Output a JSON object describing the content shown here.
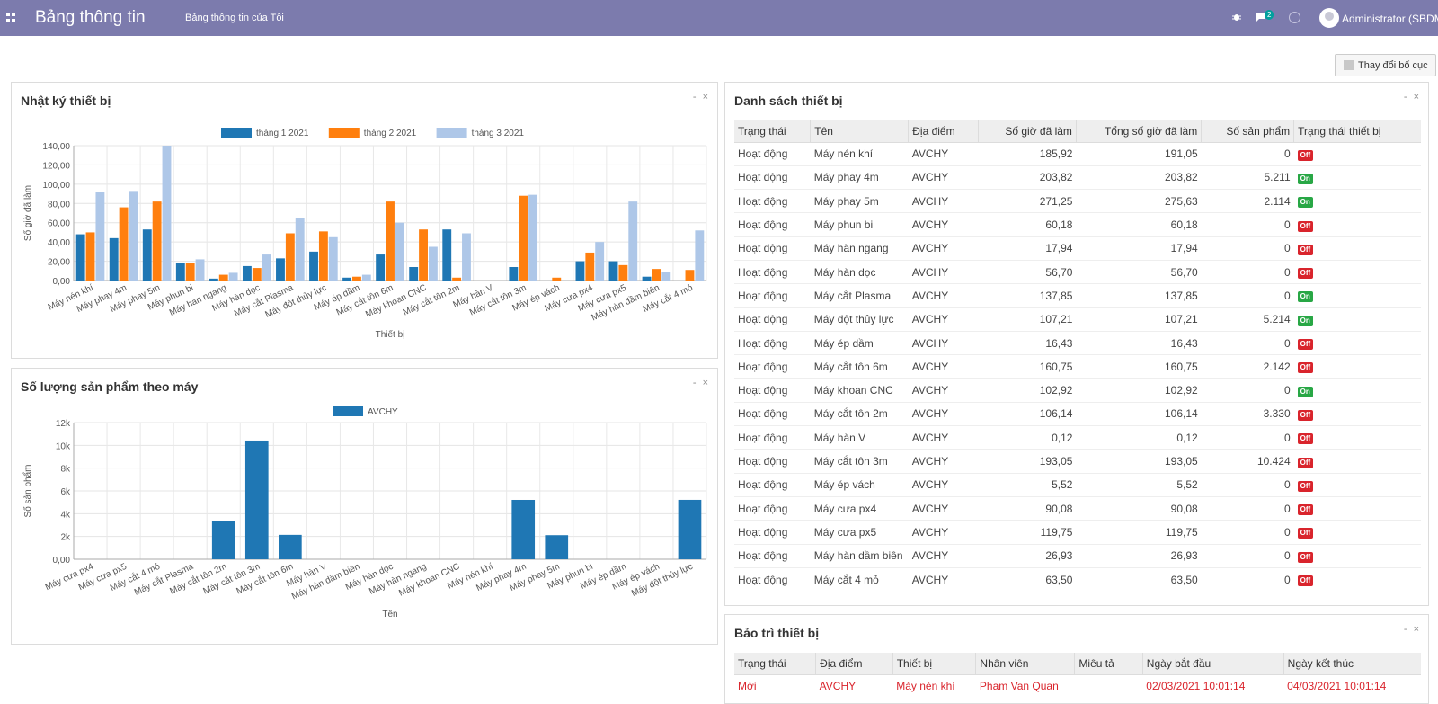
{
  "topbar": {
    "app_title": "Bảng thông tin",
    "menu_link": "Bảng thông tin của Tôi",
    "messages_count": "2",
    "user_name": "Administrator (SBDM)"
  },
  "layout_button": "Thay đổi bố cục",
  "colors": {
    "topbar": "#7c7bad",
    "series_jan": "#1f77b4",
    "series_feb": "#ff7f0e",
    "series_mar": "#aec7e8",
    "on": "#28a745",
    "off": "#d9242c"
  },
  "icons": {
    "apps": "apps-grid-icon",
    "bug": "bug-icon",
    "chat": "chat-icon",
    "clock": "clock-icon",
    "avatar": "user-avatar"
  },
  "panels": {
    "log": {
      "title": "Nhật ký thiết bị",
      "controls": "- ×"
    },
    "products": {
      "title": "Số lượng sản phẩm theo máy",
      "controls": "- ×"
    },
    "equipment": {
      "title": "Danh sách thiết bị",
      "controls": "- ×"
    },
    "maintenance": {
      "title": "Bảo trì thiết bị",
      "controls": "- ×"
    }
  },
  "chart_data": [
    {
      "type": "bar",
      "title": "",
      "xlabel": "Thiết bị",
      "ylabel": "Số giờ đã làm",
      "ylim": [
        0,
        140
      ],
      "yticks": [
        "0,00",
        "20,00",
        "40,00",
        "60,00",
        "80,00",
        "100,00",
        "120,00",
        "140,00"
      ],
      "legend": "top",
      "grid": true,
      "categories": [
        "Máy nén khí",
        "Máy phay 4m",
        "Máy phay 5m",
        "Máy phun bi",
        "Máy hàn ngang",
        "Máy hàn dọc",
        "Máy cắt Plasma",
        "Máy đột thủy lực",
        "Máy ép dầm",
        "Máy cắt tôn 6m",
        "Máy khoan CNC",
        "Máy cắt tôn 2m",
        "Máy hàn V",
        "Máy cắt tôn 3m",
        "Máy ép vách",
        "Máy cưa px4",
        "Máy cưa px5",
        "Máy hàn dầm biên",
        "Máy cắt 4 mỏ"
      ],
      "series": [
        {
          "name": "tháng 1 2021",
          "color": "#1f77b4",
          "values": [
            48,
            44,
            53,
            18,
            2,
            15,
            23,
            30,
            3,
            27,
            14,
            53,
            0,
            14,
            0,
            20,
            20,
            4,
            0
          ]
        },
        {
          "name": "tháng 2 2021",
          "color": "#ff7f0e",
          "values": [
            50,
            76,
            82,
            18,
            6,
            13,
            49,
            51,
            4,
            82,
            53,
            3,
            0,
            88,
            3,
            29,
            16,
            12,
            11
          ]
        },
        {
          "name": "tháng 3 2021",
          "color": "#aec7e8",
          "values": [
            92,
            93,
            140,
            22,
            8,
            27,
            65,
            45,
            6,
            60,
            35,
            49,
            0,
            89,
            0,
            40,
            82,
            9,
            52
          ]
        }
      ]
    },
    {
      "type": "bar",
      "title": "",
      "xlabel": "Tên",
      "ylabel": "Số sản phẩm",
      "ylim": [
        0,
        12000
      ],
      "yticks": [
        "0,00",
        "2k",
        "4k",
        "6k",
        "8k",
        "10k",
        "12k"
      ],
      "legend": "top",
      "grid": true,
      "categories": [
        "Máy cưa px4",
        "Máy cưa px5",
        "Máy cắt 4 mỏ",
        "Máy cắt Plasma",
        "Máy cắt tôn 2m",
        "Máy cắt tôn 3m",
        "Máy cắt tôn 6m",
        "Máy hàn V",
        "Máy hàn dầm biên",
        "Máy hàn dọc",
        "Máy hàn ngang",
        "Máy khoan CNC",
        "Máy nén khí",
        "Máy phay 4m",
        "Máy phay 5m",
        "Máy phun bi",
        "Máy ép dầm",
        "Máy ép vách",
        "Máy đột thủy lực"
      ],
      "series": [
        {
          "name": "AVCHY",
          "color": "#1f77b4",
          "values": [
            0,
            0,
            0,
            0,
            3330,
            10424,
            2142,
            0,
            0,
            0,
            0,
            0,
            0,
            5211,
            2114,
            0,
            0,
            0,
            5214
          ]
        }
      ]
    }
  ],
  "equipment_table": {
    "columns": [
      "Trạng thái",
      "Tên",
      "Địa điểm",
      "Số giờ đã làm",
      "Tổng số giờ đã làm",
      "Số sản phẩm",
      "Trạng thái thiết bị"
    ],
    "rows": [
      {
        "status": "Hoạt động",
        "name": "Máy nén khí",
        "location": "AVCHY",
        "hours": "185,92",
        "total": "191,05",
        "products": "0",
        "state": "Off"
      },
      {
        "status": "Hoạt động",
        "name": "Máy phay 4m",
        "location": "AVCHY",
        "hours": "203,82",
        "total": "203,82",
        "products": "5.211",
        "state": "On"
      },
      {
        "status": "Hoạt động",
        "name": "Máy phay 5m",
        "location": "AVCHY",
        "hours": "271,25",
        "total": "275,63",
        "products": "2.114",
        "state": "On"
      },
      {
        "status": "Hoạt động",
        "name": "Máy phun bi",
        "location": "AVCHY",
        "hours": "60,18",
        "total": "60,18",
        "products": "0",
        "state": "Off"
      },
      {
        "status": "Hoạt động",
        "name": "Máy hàn ngang",
        "location": "AVCHY",
        "hours": "17,94",
        "total": "17,94",
        "products": "0",
        "state": "Off"
      },
      {
        "status": "Hoạt động",
        "name": "Máy hàn dọc",
        "location": "AVCHY",
        "hours": "56,70",
        "total": "56,70",
        "products": "0",
        "state": "Off"
      },
      {
        "status": "Hoạt động",
        "name": "Máy cắt Plasma",
        "location": "AVCHY",
        "hours": "137,85",
        "total": "137,85",
        "products": "0",
        "state": "On"
      },
      {
        "status": "Hoạt động",
        "name": "Máy đột thủy lực",
        "location": "AVCHY",
        "hours": "107,21",
        "total": "107,21",
        "products": "5.214",
        "state": "On"
      },
      {
        "status": "Hoạt động",
        "name": "Máy ép dầm",
        "location": "AVCHY",
        "hours": "16,43",
        "total": "16,43",
        "products": "0",
        "state": "Off"
      },
      {
        "status": "Hoạt động",
        "name": "Máy cắt tôn 6m",
        "location": "AVCHY",
        "hours": "160,75",
        "total": "160,75",
        "products": "2.142",
        "state": "Off"
      },
      {
        "status": "Hoạt động",
        "name": "Máy khoan CNC",
        "location": "AVCHY",
        "hours": "102,92",
        "total": "102,92",
        "products": "0",
        "state": "On"
      },
      {
        "status": "Hoạt động",
        "name": "Máy cắt tôn 2m",
        "location": "AVCHY",
        "hours": "106,14",
        "total": "106,14",
        "products": "3.330",
        "state": "Off"
      },
      {
        "status": "Hoạt động",
        "name": "Máy hàn V",
        "location": "AVCHY",
        "hours": "0,12",
        "total": "0,12",
        "products": "0",
        "state": "Off"
      },
      {
        "status": "Hoạt động",
        "name": "Máy cắt tôn 3m",
        "location": "AVCHY",
        "hours": "193,05",
        "total": "193,05",
        "products": "10.424",
        "state": "Off"
      },
      {
        "status": "Hoạt động",
        "name": "Máy ép vách",
        "location": "AVCHY",
        "hours": "5,52",
        "total": "5,52",
        "products": "0",
        "state": "Off"
      },
      {
        "status": "Hoạt động",
        "name": "Máy cưa px4",
        "location": "AVCHY",
        "hours": "90,08",
        "total": "90,08",
        "products": "0",
        "state": "Off"
      },
      {
        "status": "Hoạt động",
        "name": "Máy cưa px5",
        "location": "AVCHY",
        "hours": "119,75",
        "total": "119,75",
        "products": "0",
        "state": "Off"
      },
      {
        "status": "Hoạt động",
        "name": "Máy hàn dầm biên",
        "location": "AVCHY",
        "hours": "26,93",
        "total": "26,93",
        "products": "0",
        "state": "Off"
      },
      {
        "status": "Hoạt động",
        "name": "Máy cắt 4 mỏ",
        "location": "AVCHY",
        "hours": "63,50",
        "total": "63,50",
        "products": "0",
        "state": "Off"
      }
    ]
  },
  "maintenance_table": {
    "columns": [
      "Trạng thái",
      "Địa điểm",
      "Thiết bị",
      "Nhân viên",
      "Miêu tả",
      "Ngày bắt đầu",
      "Ngày kết thúc"
    ],
    "rows": [
      {
        "status": "Mới",
        "location": "AVCHY",
        "equipment": "Máy nén khí",
        "employee": "Pham Van Quan",
        "description": "",
        "start": "02/03/2021 10:01:14",
        "end": "04/03/2021 10:01:14"
      }
    ]
  }
}
